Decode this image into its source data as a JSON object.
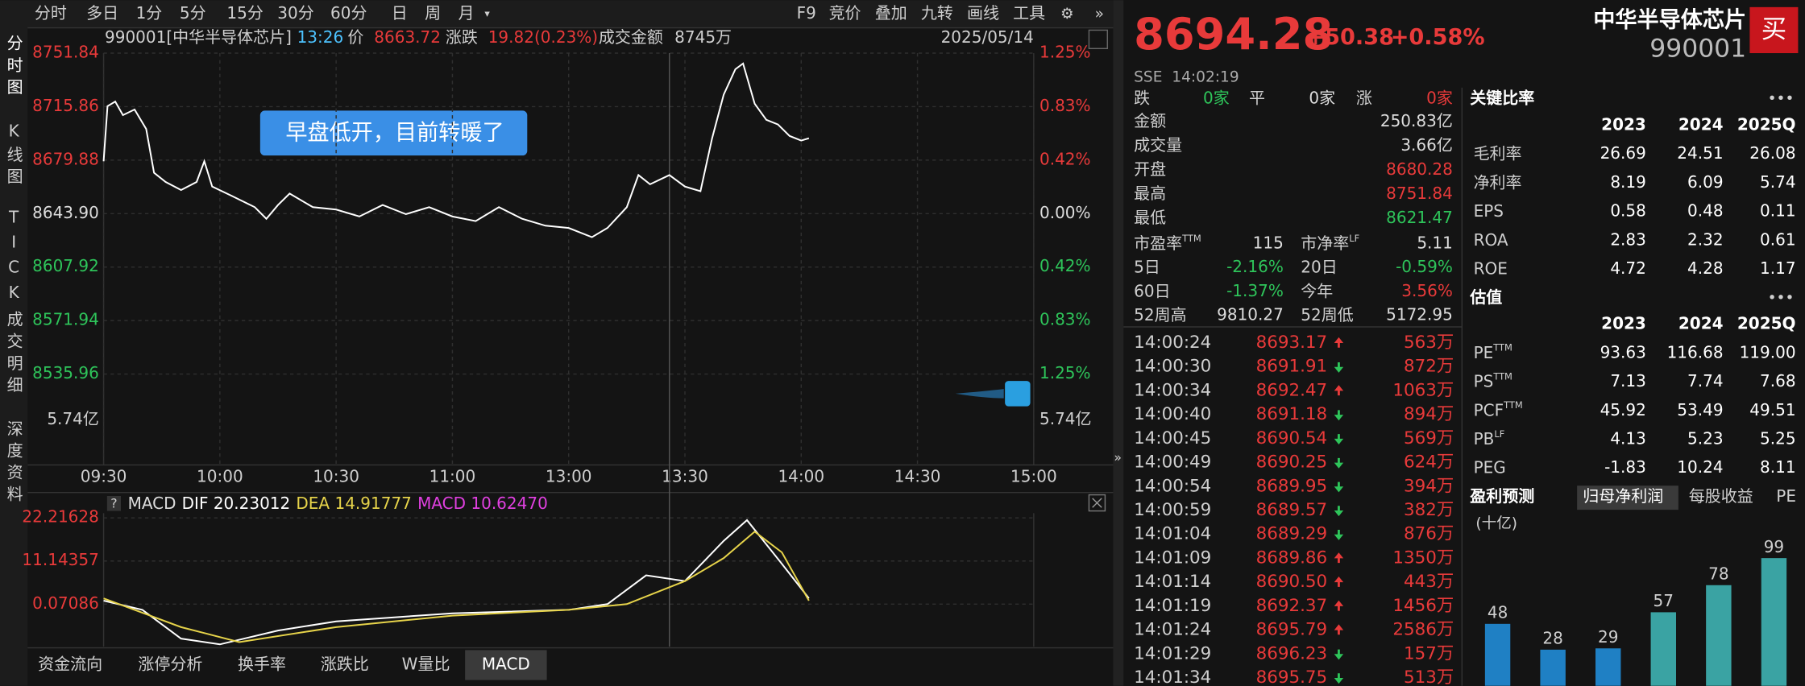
{
  "toolbar": {
    "periods": [
      "分时",
      "多日",
      "1分",
      "5分",
      "15分",
      "30分",
      "60分",
      "日",
      "周",
      "月"
    ],
    "tools": [
      "F9",
      "竞价",
      "叠加",
      "九转",
      "画线",
      "工具"
    ]
  },
  "sidebar": [
    "分时图",
    "K线图",
    "TICK",
    "成交明细",
    "深度资料"
  ],
  "info": {
    "code": "990001[中华半导体芯片]",
    "time": "13:26",
    "price_label": "价",
    "price": "8663.72",
    "change_label": "涨跌",
    "change": "19.82(0.23%)",
    "amount_label": "成交金额",
    "amount": "8745万",
    "date": "2025/05/14"
  },
  "annotation": "早盘低开，目前转暖了",
  "intraday": {
    "ylim": [
      8535.96,
      8751.84
    ],
    "yticks": [
      8751.84,
      8715.86,
      8679.88,
      {
        "value": 8643.9,
        "label": "8643.90"
      },
      8607.92,
      8571.94,
      8535.96
    ],
    "pct_ticks": [
      {
        "value": 8751.84,
        "label": "1.25%"
      },
      {
        "value": 8715.86,
        "label": "0.83%"
      },
      {
        "value": 8679.88,
        "label": "0.42%"
      },
      {
        "value": 8643.9,
        "label": "0.00%"
      },
      {
        "value": 8607.92,
        "label": "0.42%"
      },
      {
        "value": 8571.94,
        "label": "0.83%"
      },
      {
        "value": 8535.96,
        "label": "1.25%"
      }
    ],
    "volume_label": "5.74亿",
    "xticks": [
      "09:30",
      "10:00",
      "10:30",
      "11:00",
      "13:00",
      "13:30",
      "14:00",
      "14:30",
      "15:00"
    ],
    "price": {
      "color": "#ffffff",
      "times": [
        "09:30",
        "09:31",
        "09:33",
        "09:35",
        "09:38",
        "09:41",
        "09:43",
        "09:46",
        "09:50",
        "09:54",
        "09:56",
        "09:58",
        "10:03",
        "10:09",
        "10:12",
        "10:15",
        "10:18",
        "10:24",
        "10:30",
        "10:36",
        "10:42",
        "10:48",
        "10:54",
        "11:00",
        "11:06",
        "11:12",
        "11:18",
        "11:24",
        "11:30",
        "13:06",
        "13:10",
        "13:15",
        "13:18",
        "13:21",
        "13:26",
        "13:30",
        "13:34",
        "13:37",
        "13:40",
        "13:43",
        "13:45",
        "13:48",
        "13:51",
        "13:54",
        "13:57",
        "14:00",
        "14:02"
      ],
      "values": [
        8679.1,
        8716.2,
        8719.3,
        8710.1,
        8713.9,
        8700.8,
        8671.4,
        8665.2,
        8659.8,
        8665.2,
        8679.1,
        8662.1,
        8655.9,
        8648.2,
        8640.4,
        8649.7,
        8657.4,
        8648.2,
        8646.6,
        8642.0,
        8649.7,
        8643.5,
        8648.2,
        8642.0,
        8638.9,
        8648.2,
        8640.4,
        8635.8,
        8634.2,
        8628.0,
        8634.2,
        8648.2,
        8669.8,
        8663.6,
        8669.8,
        8662.1,
        8659.0,
        8694.6,
        8724.0,
        8741.0,
        8744.9,
        8717.8,
        8707.0,
        8703.9,
        8696.1,
        8693.0,
        8694.6
      ]
    }
  },
  "macd": {
    "title": "MACD",
    "dif_label": "DIF 20.23012",
    "dea_label": "DEA 14.91777",
    "macd_label": "MACD 10.62470",
    "ylim": [
      -10.85,
      23.4
    ],
    "yticks": [
      22.21628,
      11.14357,
      0.07086
    ],
    "dif": {
      "color": "#ffffff",
      "times": [
        "09:30",
        "09:40",
        "09:50",
        "10:00",
        "10:15",
        "10:30",
        "11:00",
        "11:30",
        "13:10",
        "13:20",
        "13:30",
        "13:40",
        "13:46",
        "13:55",
        "14:02"
      ],
      "values": [
        0.96,
        -1.41,
        -8.79,
        -10.26,
        -6.72,
        -4.36,
        -2.29,
        -1.41,
        0.07,
        7.45,
        5.98,
        16.31,
        21.62,
        10.41,
        1.55
      ]
    },
    "dea": {
      "color": "#e6d34a",
      "times": [
        "09:30",
        "09:50",
        "10:05",
        "10:30",
        "11:00",
        "11:30",
        "13:15",
        "13:30",
        "13:40",
        "13:48",
        "13:55",
        "14:02"
      ],
      "values": [
        1.55,
        -5.83,
        -9.67,
        -5.83,
        -2.88,
        -1.41,
        0.07,
        5.98,
        11.88,
        18.67,
        13.36,
        0.96
      ]
    }
  },
  "bottom_tabs": [
    "资金流向",
    "涨停分析",
    "换手率",
    "涨跌比",
    "W量比",
    "MACD"
  ],
  "selected_tab": 5,
  "quote": {
    "price": "8694.28",
    "change": "+50.38",
    "pct": "+0.58%",
    "name": "中华半导体芯片",
    "code": "990001",
    "buy": "买",
    "exchange": "SSE",
    "time": "14:02:19"
  },
  "breadth": [
    {
      "label": "跌",
      "value": "0家",
      "color": "#2ec45a"
    },
    {
      "label": "平",
      "value": "0家",
      "color": "#dddddd"
    },
    {
      "label": "涨",
      "value": "0家",
      "color": "#e83a3a"
    }
  ],
  "stats": [
    {
      "label": "金额",
      "value": "250.83亿",
      "color": "#dddddd"
    },
    {
      "label": "成交量",
      "value": "3.66亿",
      "color": "#dddddd"
    },
    {
      "label": "开盘",
      "value": "8680.28",
      "color": "#e83a3a"
    },
    {
      "label": "最高",
      "value": "8751.84",
      "color": "#e83a3a"
    },
    {
      "label": "最低",
      "value": "8621.47",
      "color": "#2ec45a"
    }
  ],
  "stat_pairs": [
    {
      "l1": "市盈率",
      "s1": "TTM",
      "v1": "115",
      "c1": "#dddddd",
      "l2": "市净率",
      "s2": "LF",
      "v2": "5.11",
      "c2": "#dddddd"
    },
    {
      "l1": "5日",
      "v1": "-2.16%",
      "c1": "#2ec45a",
      "l2": "20日",
      "v2": "-0.59%",
      "c2": "#2ec45a"
    },
    {
      "l1": "60日",
      "v1": "-1.37%",
      "c1": "#2ec45a",
      "l2": "今年",
      "v2": "3.56%",
      "c2": "#e83a3a"
    },
    {
      "l1": "52周高",
      "v1": "9810.27",
      "c1": "#dddddd",
      "l2": "52周低",
      "v2": "5172.95",
      "c2": "#dddddd"
    }
  ],
  "ticks": [
    {
      "time": "14:00:24",
      "price": "8693.17",
      "arrow": "up",
      "volume": "563万"
    },
    {
      "time": "14:00:30",
      "price": "8691.91",
      "arrow": "down",
      "volume": "872万"
    },
    {
      "time": "14:00:34",
      "price": "8692.47",
      "arrow": "up",
      "volume": "1063万"
    },
    {
      "time": "14:00:40",
      "price": "8691.18",
      "arrow": "down",
      "volume": "894万"
    },
    {
      "time": "14:00:45",
      "price": "8690.54",
      "arrow": "down",
      "volume": "569万"
    },
    {
      "time": "14:00:49",
      "price": "8690.25",
      "arrow": "down",
      "volume": "624万"
    },
    {
      "time": "14:00:54",
      "price": "8689.95",
      "arrow": "down",
      "volume": "394万"
    },
    {
      "time": "14:00:59",
      "price": "8689.57",
      "arrow": "down",
      "volume": "382万"
    },
    {
      "time": "14:01:04",
      "price": "8689.29",
      "arrow": "down",
      "volume": "876万"
    },
    {
      "time": "14:01:09",
      "price": "8689.86",
      "arrow": "up",
      "volume": "1350万"
    },
    {
      "time": "14:01:14",
      "price": "8690.50",
      "arrow": "up",
      "volume": "443万"
    },
    {
      "time": "14:01:19",
      "price": "8692.37",
      "arrow": "up",
      "volume": "1456万"
    },
    {
      "time": "14:01:24",
      "price": "8695.79",
      "arrow": "up",
      "volume": "2586万"
    },
    {
      "time": "14:01:29",
      "price": "8696.23",
      "arrow": "down",
      "volume": "157万"
    },
    {
      "time": "14:01:34",
      "price": "8695.75",
      "arrow": "down",
      "volume": "513万"
    }
  ],
  "ratios": {
    "title": "关键比率",
    "years": [
      "2023",
      "2024",
      "2025Q"
    ],
    "rows": [
      {
        "name": "毛利率",
        "values": [
          "26.69",
          "24.51",
          "26.08"
        ]
      },
      {
        "name": "净利率",
        "values": [
          "8.19",
          "6.09",
          "5.74"
        ]
      },
      {
        "name": "EPS",
        "values": [
          "0.58",
          "0.48",
          "0.11"
        ]
      },
      {
        "name": "ROA",
        "values": [
          "2.83",
          "2.32",
          "0.61"
        ]
      },
      {
        "name": "ROE",
        "values": [
          "4.72",
          "4.28",
          "1.17"
        ]
      }
    ]
  },
  "valuation": {
    "title": "估值",
    "years": [
      "2023",
      "2024",
      "2025Q"
    ],
    "rows": [
      {
        "name": "PE",
        "sup": "TTM",
        "values": [
          "93.63",
          "116.68",
          "119.00"
        ]
      },
      {
        "name": "PS",
        "sup": "TTM",
        "values": [
          "7.13",
          "7.74",
          "7.68"
        ]
      },
      {
        "name": "PCF",
        "sup": "TTM",
        "values": [
          "45.92",
          "53.49",
          "49.51"
        ]
      },
      {
        "name": "PB",
        "sup": "LF",
        "values": [
          "4.13",
          "5.23",
          "5.25"
        ]
      },
      {
        "name": "PEG",
        "values": [
          "-1.83",
          "10.24",
          "8.11"
        ]
      }
    ]
  },
  "forecast": {
    "title": "盈利预测",
    "tabs": [
      "归母净利润",
      "每股收益",
      "PE"
    ],
    "selected_tab": 0,
    "unit": "(十亿)",
    "values": [
      48,
      28,
      29,
      57,
      78,
      99
    ],
    "colors": [
      "#1f80c4",
      "#1f80c4",
      "#1f80c4",
      "#3aa3a3",
      "#3aa3a3",
      "#3aa3a3"
    ]
  }
}
